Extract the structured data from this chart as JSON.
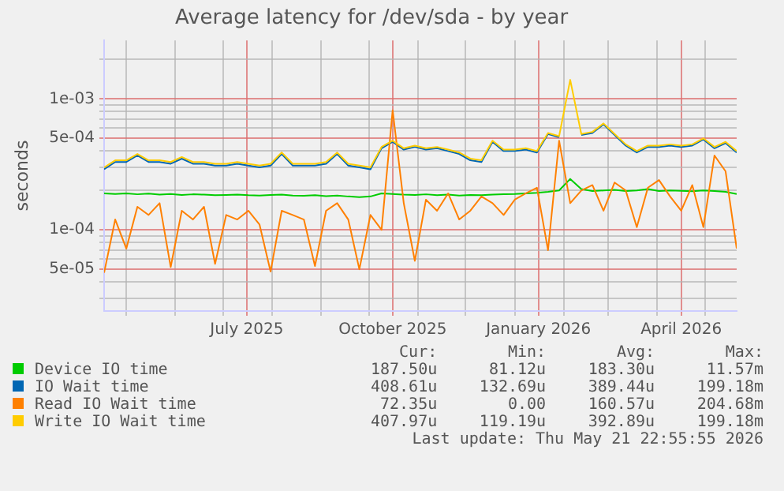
{
  "chart_data": {
    "type": "line",
    "title": "Average latency for /dev/sda - by year",
    "ylabel": "seconds",
    "log": "y",
    "grid": true,
    "legend": "bottom",
    "marker": "none",
    "line_style": "solid",
    "x": [
      "2025-04-17",
      "2025-04-24",
      "2025-05-01",
      "2025-05-08",
      "2025-05-15",
      "2025-05-22",
      "2025-05-29",
      "2025-06-05",
      "2025-06-12",
      "2025-06-19",
      "2025-06-26",
      "2025-07-03",
      "2025-07-10",
      "2025-07-17",
      "2025-07-24",
      "2025-07-31",
      "2025-08-07",
      "2025-08-14",
      "2025-08-21",
      "2025-08-28",
      "2025-09-04",
      "2025-09-11",
      "2025-09-18",
      "2025-09-25",
      "2025-10-02",
      "2025-10-09",
      "2025-10-16",
      "2025-10-23",
      "2025-10-30",
      "2025-11-06",
      "2025-11-13",
      "2025-11-20",
      "2025-11-27",
      "2025-12-04",
      "2025-12-11",
      "2025-12-18",
      "2025-12-25",
      "2026-01-01",
      "2026-01-08",
      "2026-01-15",
      "2026-01-22",
      "2026-01-29",
      "2026-02-05",
      "2026-02-12",
      "2026-02-19",
      "2026-02-26",
      "2026-03-05",
      "2026-03-12",
      "2026-03-19",
      "2026-03-26",
      "2026-04-02",
      "2026-04-09",
      "2026-04-16",
      "2026-04-23",
      "2026-04-30",
      "2026-05-07",
      "2026-05-14",
      "2026-05-21"
    ],
    "xlim": [
      "2025-04-17",
      "2026-05-21"
    ],
    "xticks": [
      {
        "value": "2025-05-01",
        "label": null
      },
      {
        "value": "2025-06-01",
        "label": null
      },
      {
        "value": "2025-07-01",
        "label": null
      },
      {
        "value": "2025-07-16",
        "label": "July 2025"
      },
      {
        "value": "2025-08-01",
        "label": null
      },
      {
        "value": "2025-09-01",
        "label": null
      },
      {
        "value": "2025-10-01",
        "label": null
      },
      {
        "value": "2025-10-16",
        "label": "October 2025"
      },
      {
        "value": "2025-11-01",
        "label": null
      },
      {
        "value": "2025-12-01",
        "label": null
      },
      {
        "value": "2026-01-01",
        "label": null
      },
      {
        "value": "2026-01-16",
        "label": "January 2026"
      },
      {
        "value": "2026-02-01",
        "label": null
      },
      {
        "value": "2026-03-01",
        "label": null
      },
      {
        "value": "2026-04-01",
        "label": null
      },
      {
        "value": "2026-04-16",
        "label": "April 2026"
      },
      {
        "value": "2026-05-01",
        "label": null
      }
    ],
    "ylim": [
      2.4e-05,
      0.0028
    ],
    "yticks": [
      {
        "value": 3e-05,
        "label": null
      },
      {
        "value": 4e-05,
        "label": null
      },
      {
        "value": 5e-05,
        "label": "5e-05"
      },
      {
        "value": 6e-05,
        "label": null
      },
      {
        "value": 7e-05,
        "label": null
      },
      {
        "value": 8e-05,
        "label": null
      },
      {
        "value": 9e-05,
        "label": null
      },
      {
        "value": 0.0001,
        "label": "1e-04"
      },
      {
        "value": 0.0002,
        "label": null
      },
      {
        "value": 0.0003,
        "label": null
      },
      {
        "value": 0.0004,
        "label": null
      },
      {
        "value": 0.0005,
        "label": "5e-04"
      },
      {
        "value": 0.0006,
        "label": null
      },
      {
        "value": 0.0007,
        "label": null
      },
      {
        "value": 0.0008,
        "label": null
      },
      {
        "value": 0.0009,
        "label": null
      },
      {
        "value": 0.001,
        "label": "1e-03"
      },
      {
        "value": 0.002,
        "label": null
      }
    ],
    "series": [
      {
        "name": "Device IO time",
        "color": "#00cc00",
        "values": [
          0.00019,
          0.000188,
          0.00019,
          0.000187,
          0.000189,
          0.000186,
          0.000188,
          0.000185,
          0.000187,
          0.000186,
          0.000184,
          0.000185,
          0.000186,
          0.000184,
          0.000183,
          0.000185,
          0.000186,
          0.000183,
          0.000182,
          0.000184,
          0.000181,
          0.000183,
          0.00018,
          0.000178,
          0.00018,
          0.00019,
          0.000188,
          0.000186,
          0.000185,
          0.000187,
          0.000184,
          0.000186,
          0.000183,
          0.000185,
          0.000184,
          0.000186,
          0.000187,
          0.000188,
          0.00019,
          0.000192,
          0.000195,
          0.0002,
          0.000245,
          0.000205,
          0.000198,
          0.0002,
          0.000202,
          0.000198,
          0.0002,
          0.000205,
          0.000198,
          0.0002,
          0.000199,
          0.000197,
          0.0002,
          0.000198,
          0.000195,
          0.000188
        ]
      },
      {
        "name": "IO Wait time",
        "color": "#0066b3",
        "values": [
          0.00029,
          0.00033,
          0.00033,
          0.00037,
          0.00033,
          0.00033,
          0.00032,
          0.00035,
          0.00032,
          0.00032,
          0.00031,
          0.00031,
          0.00032,
          0.00031,
          0.0003,
          0.00031,
          0.00038,
          0.00031,
          0.00031,
          0.00031,
          0.00032,
          0.00038,
          0.00031,
          0.0003,
          0.00029,
          0.00042,
          0.00047,
          0.00041,
          0.00043,
          0.00041,
          0.00042,
          0.0004,
          0.00038,
          0.00034,
          0.00033,
          0.00047,
          0.0004,
          0.0004,
          0.00041,
          0.00039,
          0.00054,
          0.00051,
          null,
          0.00053,
          0.00055,
          0.00064,
          0.00053,
          0.00044,
          0.00039,
          0.00043,
          0.00043,
          0.00044,
          0.00043,
          0.00044,
          0.00049,
          0.00042,
          0.00046,
          0.00039
        ]
      },
      {
        "name": "Read IO Wait time",
        "color": "#ff8000",
        "values": [
          4.7e-05,
          0.00012,
          7.2e-05,
          0.00015,
          0.00013,
          0.00016,
          5.2e-05,
          0.00014,
          0.00012,
          0.00015,
          5.5e-05,
          0.00013,
          0.00012,
          0.00014,
          0.00011,
          4.8e-05,
          0.00014,
          0.00013,
          0.00012,
          5.3e-05,
          0.00014,
          0.00016,
          0.00012,
          5e-05,
          0.00013,
          0.0001,
          0.00082,
          0.00016,
          5.8e-05,
          0.00017,
          0.00014,
          0.00019,
          0.00012,
          0.00014,
          0.00018,
          0.00016,
          0.00013,
          0.00017,
          0.00019,
          0.00021,
          7e-05,
          0.00048,
          0.00016,
          0.0002,
          0.00022,
          0.00014,
          0.00023,
          0.0002,
          0.000105,
          0.00021,
          0.00024,
          0.00018,
          0.00014,
          0.00022,
          0.000105,
          0.00037,
          0.00028,
          7.2e-05
        ]
      },
      {
        "name": "Write IO Wait time",
        "color": "#ffcc00",
        "values": [
          0.0003,
          0.00034,
          0.00034,
          0.00038,
          0.00034,
          0.00034,
          0.00033,
          0.00036,
          0.00033,
          0.00033,
          0.00032,
          0.00032,
          0.00033,
          0.00032,
          0.00031,
          0.00032,
          0.00039,
          0.00032,
          0.00032,
          0.00032,
          0.00033,
          0.00039,
          0.00032,
          0.00031,
          0.0003,
          0.00043,
          0.00048,
          0.00042,
          0.00044,
          0.00042,
          0.00043,
          0.00041,
          0.00039,
          0.00035,
          0.00034,
          0.00048,
          0.00041,
          0.00041,
          0.00042,
          0.0004,
          0.00055,
          0.00052,
          0.0014,
          0.00054,
          0.00056,
          0.00065,
          0.00054,
          0.00045,
          0.0004,
          0.00044,
          0.00044,
          0.00045,
          0.00044,
          0.00045,
          0.0005,
          0.00043,
          0.00047,
          0.0004
        ]
      }
    ],
    "annotations": [
      "Cur:",
      "Min:",
      "Avg:",
      "Max:",
      "187.50u",
      "81.12u",
      "183.30u",
      "11.57m",
      "408.61u",
      "132.69u",
      "389.44u",
      "199.18m",
      "72.35u",
      "0.00",
      "160.57u",
      "204.68m",
      "407.97u",
      "119.19u",
      "392.89u",
      "199.18m",
      "Last update: Thu May 21 22:55:55 2026"
    ]
  }
}
